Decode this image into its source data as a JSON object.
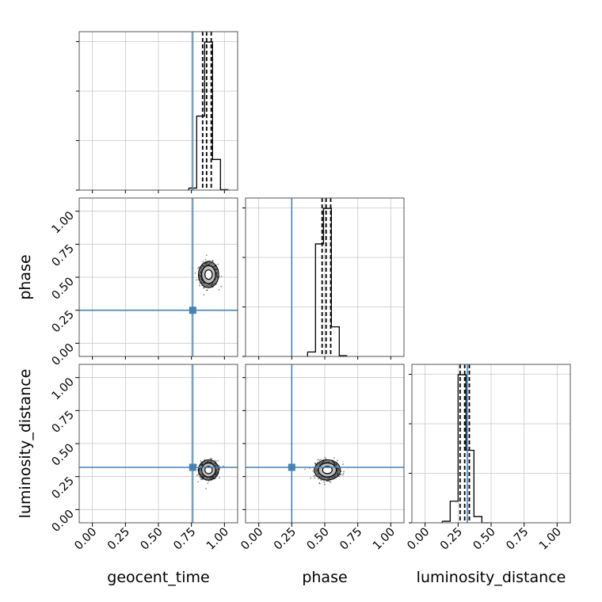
{
  "chart_data": {
    "type": "corner",
    "parameters": [
      "geocent_time",
      "phase",
      "luminosity_distance"
    ],
    "axis_range": [
      -0.1,
      1.1
    ],
    "tick_labels": [
      "0.00",
      "0.25",
      "0.50",
      "0.75",
      "1.00"
    ],
    "tick_values": [
      0,
      0.25,
      0.5,
      0.75,
      1.0
    ],
    "grid": true,
    "truths": {
      "geocent_time": 0.76,
      "phase": 0.25,
      "luminosity_distance": 0.32
    },
    "truth_color": "#4682b4",
    "histograms": [
      {
        "parameter": "geocent_time",
        "bin_edges": [
          0.73,
          0.79,
          0.85,
          0.91,
          0.97,
          1.03
        ],
        "counts": [
          0.04,
          1.45,
          2.9,
          0.6,
          0.01
        ],
        "quantiles": [
          0.835,
          0.865,
          0.9
        ]
      },
      {
        "parameter": "phase",
        "bin_edges": [
          0.37,
          0.43,
          0.49,
          0.55,
          0.61,
          0.67
        ],
        "counts": [
          0.06,
          1.52,
          2.0,
          0.4,
          0.01
        ],
        "quantiles": [
          0.48,
          0.51,
          0.545
        ]
      },
      {
        "parameter": "luminosity_distance",
        "bin_edges": [
          0.13,
          0.19,
          0.25,
          0.31,
          0.37,
          0.43,
          0.49
        ],
        "counts": [
          0.01,
          0.14,
          0.96,
          0.47,
          0.04,
          0.0
        ],
        "quantiles": [
          0.265,
          0.3,
          0.335
        ]
      }
    ],
    "scatter_2d": [
      {
        "x": "geocent_time",
        "y": "phase",
        "center": [
          0.88,
          0.52
        ],
        "spread": [
          0.035,
          0.045
        ]
      },
      {
        "x": "geocent_time",
        "y": "luminosity_distance",
        "center": [
          0.88,
          0.3
        ],
        "spread": [
          0.035,
          0.035
        ]
      },
      {
        "x": "phase",
        "y": "luminosity_distance",
        "center": [
          0.52,
          0.3
        ],
        "spread": [
          0.045,
          0.035
        ]
      }
    ]
  }
}
